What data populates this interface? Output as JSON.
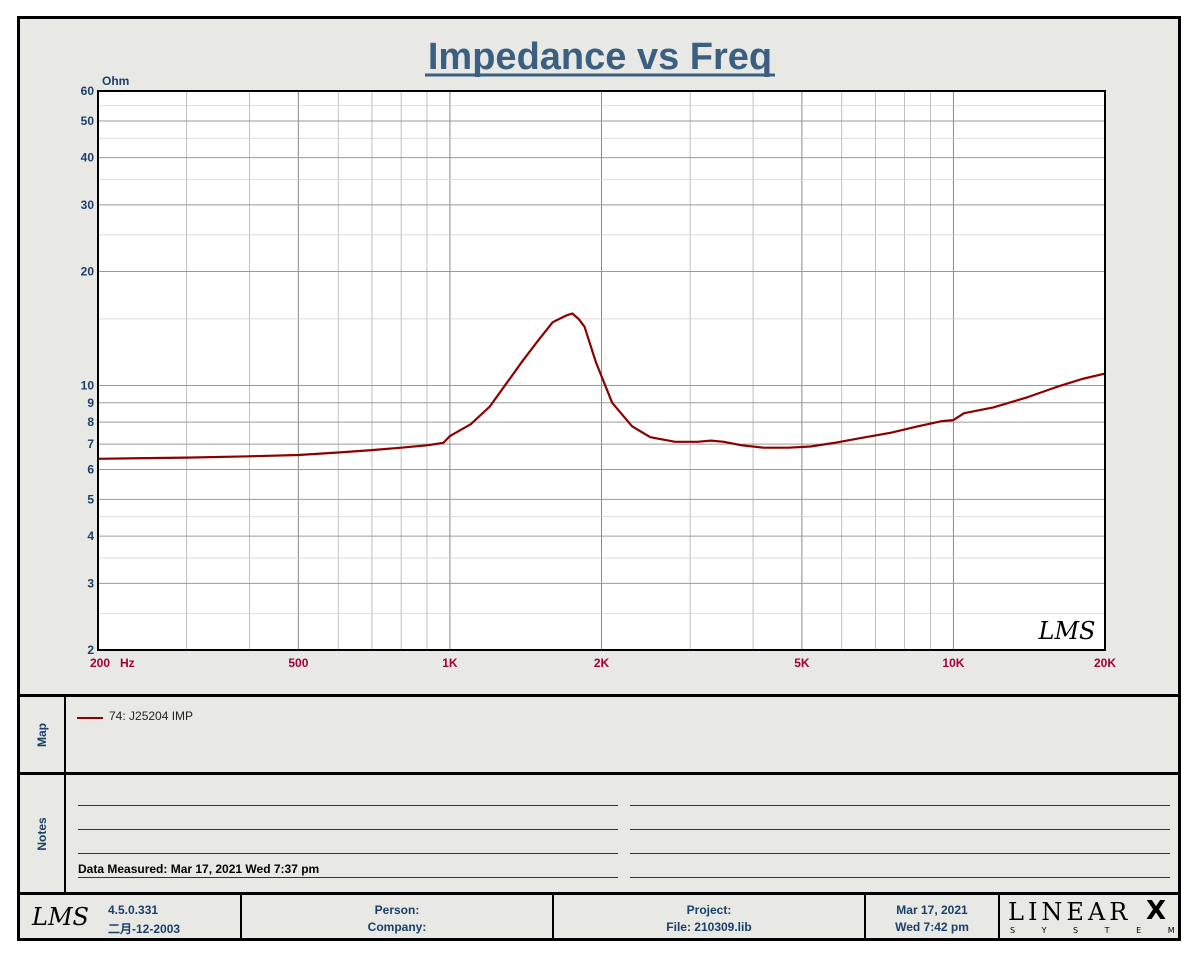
{
  "chart_data": {
    "type": "line",
    "title": "Impedance vs Freq",
    "ylabel": "Ohm",
    "xlabel": "",
    "x_unit": "Hz",
    "x_scale": "log",
    "y_scale": "log",
    "xlim": [
      200,
      20000
    ],
    "ylim": [
      2,
      60
    ],
    "grid": true,
    "x_ticks": [
      {
        "value": 200,
        "label": "200"
      },
      {
        "value": 500,
        "label": "500"
      },
      {
        "value": 1000,
        "label": "1K"
      },
      {
        "value": 2000,
        "label": "2K"
      },
      {
        "value": 5000,
        "label": "5K"
      },
      {
        "value": 10000,
        "label": "10K"
      },
      {
        "value": 20000,
        "label": "20K"
      }
    ],
    "y_ticks": [
      2,
      3,
      4,
      5,
      6,
      7,
      8,
      9,
      10,
      20,
      30,
      40,
      50,
      60
    ],
    "series": [
      {
        "name": "74: J25204  IMP",
        "color": "#8b0000",
        "x": [
          200,
          300,
          400,
          500,
          600,
          700,
          800,
          900,
          970,
          1000,
          1100,
          1200,
          1300,
          1400,
          1500,
          1600,
          1700,
          1750,
          1800,
          1850,
          1950,
          2100,
          2300,
          2500,
          2800,
          3100,
          3300,
          3500,
          3800,
          4200,
          4700,
          5200,
          5800,
          6500,
          7500,
          8500,
          9500,
          10000,
          10500,
          12000,
          14000,
          16000,
          18000,
          20000
        ],
        "y": [
          6.4,
          6.45,
          6.5,
          6.55,
          6.65,
          6.75,
          6.85,
          6.95,
          7.05,
          7.35,
          7.9,
          8.8,
          10.2,
          11.7,
          13.2,
          14.7,
          15.3,
          15.5,
          15.0,
          14.3,
          11.5,
          9.0,
          7.8,
          7.3,
          7.1,
          7.1,
          7.15,
          7.1,
          6.95,
          6.85,
          6.85,
          6.9,
          7.05,
          7.25,
          7.5,
          7.8,
          8.05,
          8.1,
          8.45,
          8.75,
          9.3,
          9.9,
          10.4,
          10.75
        ]
      }
    ]
  },
  "map": {
    "label": "Map",
    "legend_label": "74: J25204  IMP",
    "legend_color": "#8b0000"
  },
  "notes": {
    "label": "Notes",
    "measured": "Data Measured: Mar 17, 2021  Wed  7:37 pm"
  },
  "footer": {
    "version": "4.5.0.331",
    "version_date": "二月-12-2003",
    "person_label": "Person:",
    "company_label": "Company:",
    "project_label": "Project:",
    "file_label": "File: 210309.lib",
    "date": "Mar 17, 2021",
    "time": "Wed  7:42 pm",
    "brand": "LINEAR",
    "brand_mark": "X",
    "brand_sub": "S Y S T E M S"
  },
  "watermark": "LMS",
  "colors": {
    "title": "#3b5f80",
    "axis_label": "#1a3f6a",
    "x_tick": "#a0003a",
    "curve": "#8b0000",
    "background": "#e8e8e4"
  }
}
